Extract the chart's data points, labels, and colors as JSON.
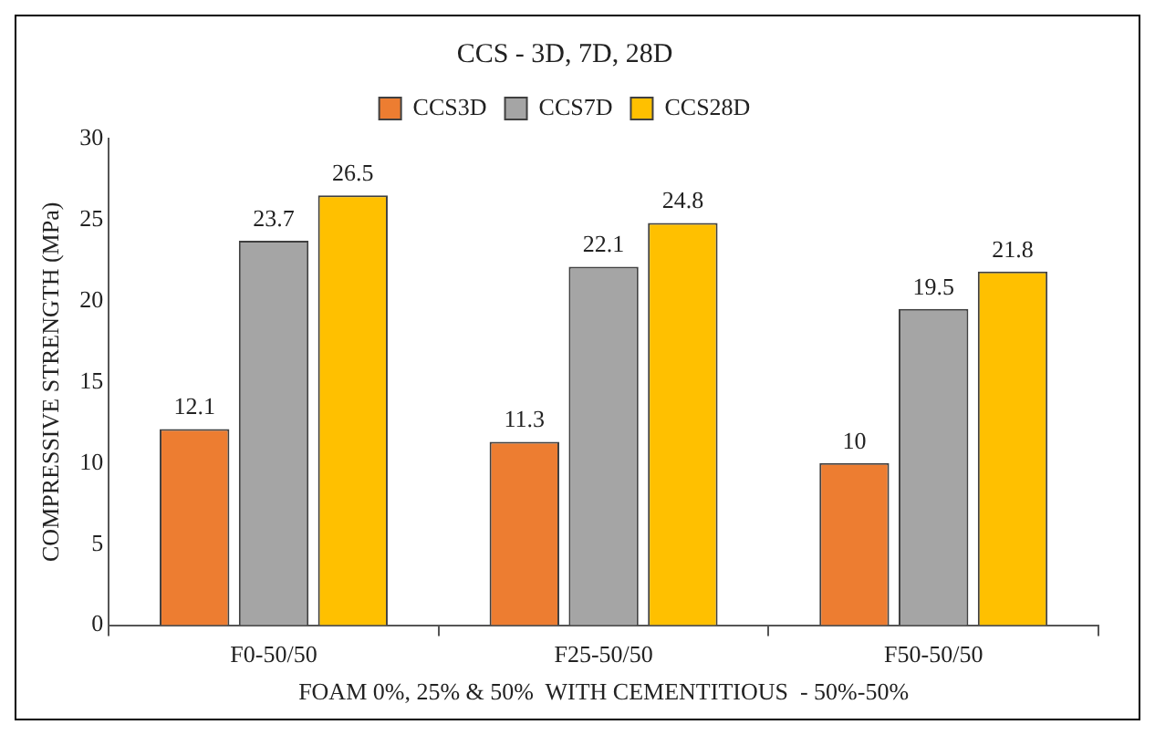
{
  "chart_data": {
    "type": "bar",
    "title": "CCS - 3D, 7D, 28D",
    "xlabel": "FOAM 0%, 25% & 50%  WITH CEMENTITIOUS  - 50%-50%",
    "ylabel": "COMPRESSIVE STRENGTH (MPa)",
    "categories": [
      "F0-50/50",
      "F25-50/50",
      "F50-50/50"
    ],
    "series": [
      {
        "name": "CCS3D",
        "color": "#ed7d31",
        "values": [
          12.1,
          11.3,
          10
        ]
      },
      {
        "name": "CCS7D",
        "color": "#a5a5a5",
        "values": [
          23.7,
          22.1,
          19.5
        ]
      },
      {
        "name": "CCS28D",
        "color": "#ffc000",
        "values": [
          26.5,
          24.8,
          21.8
        ]
      }
    ],
    "ylim": [
      0,
      30
    ],
    "yticks": [
      0,
      5,
      10,
      15,
      20,
      25,
      30
    ],
    "grid": false,
    "legend": "top",
    "data_labels": true
  }
}
